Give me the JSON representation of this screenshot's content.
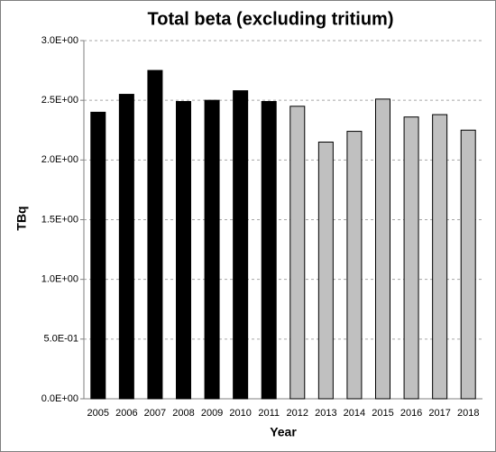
{
  "chart_data": {
    "type": "bar",
    "title": "Total beta (excluding tritium)",
    "xlabel": "Year",
    "ylabel": "TBq",
    "categories": [
      "2005",
      "2006",
      "2007",
      "2008",
      "2009",
      "2010",
      "2011",
      "2012",
      "2013",
      "2014",
      "2015",
      "2016",
      "2017",
      "2018"
    ],
    "values": [
      2.4,
      2.55,
      2.75,
      2.49,
      2.5,
      2.58,
      2.49,
      2.45,
      2.15,
      2.24,
      2.51,
      2.36,
      2.38,
      2.25
    ],
    "colors": [
      "#000000",
      "#000000",
      "#000000",
      "#000000",
      "#000000",
      "#000000",
      "#000000",
      "#c0c0c0",
      "#c0c0c0",
      "#c0c0c0",
      "#c0c0c0",
      "#c0c0c0",
      "#c0c0c0",
      "#c0c0c0"
    ],
    "edgecolor": "#000000",
    "ylim": [
      0,
      3
    ],
    "yticks": [
      {
        "value": 0,
        "label": "0.0E+00"
      },
      {
        "value": 0.5,
        "label": "5.0E-01"
      },
      {
        "value": 1,
        "label": "1.0E+00"
      },
      {
        "value": 1.5,
        "label": "1.5E+00"
      },
      {
        "value": 2,
        "label": "2.0E+00"
      },
      {
        "value": 2.5,
        "label": "2.5E+00"
      },
      {
        "value": 3,
        "label": "3.0E+00"
      }
    ],
    "grid": true
  }
}
